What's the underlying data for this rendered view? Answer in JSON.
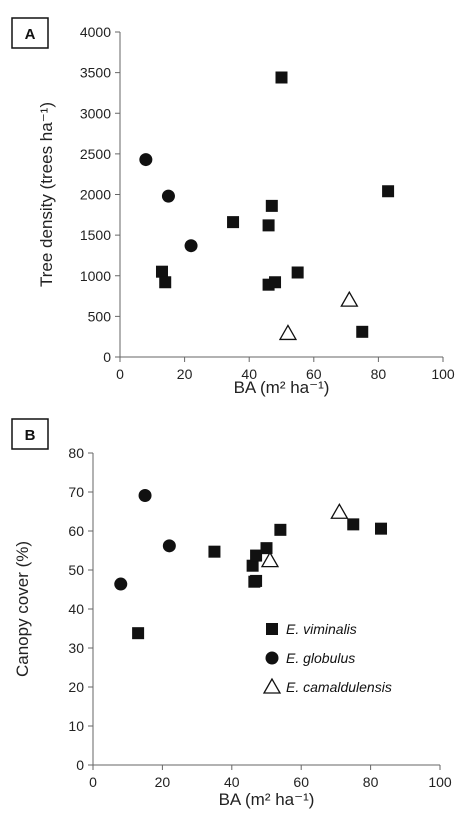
{
  "chart_data": [
    {
      "type": "scatter",
      "panel": "A",
      "title": "",
      "xlabel": "BA (m² ha⁻¹)",
      "ylabel": "Tree density (trees ha⁻¹)",
      "xlim": [
        0,
        100
      ],
      "ylim": [
        0,
        4000
      ],
      "xticks": [
        "0",
        "20",
        "40",
        "60",
        "80",
        "100"
      ],
      "yticks": [
        "0",
        "500",
        "1000",
        "1500",
        "2000",
        "2500",
        "3000",
        "3500",
        "4000"
      ],
      "grid": false,
      "series": [
        {
          "name": "E. viminalis",
          "marker": "square",
          "points": [
            [
              13,
              1050
            ],
            [
              14,
              920
            ],
            [
              35,
              1660
            ],
            [
              46,
              1620
            ],
            [
              47,
              1860
            ],
            [
              46,
              890
            ],
            [
              48,
              920
            ],
            [
              50,
              3440
            ],
            [
              55,
              1040
            ],
            [
              75,
              310
            ],
            [
              83,
              2040
            ]
          ]
        },
        {
          "name": "E. globulus",
          "marker": "circle",
          "points": [
            [
              8,
              2430
            ],
            [
              15,
              1980
            ],
            [
              22,
              1370
            ]
          ]
        },
        {
          "name": "E. camaldulensis",
          "marker": "triangle",
          "points": [
            [
              52,
              290
            ],
            [
              71,
              700
            ]
          ]
        }
      ]
    },
    {
      "type": "scatter",
      "panel": "B",
      "title": "",
      "xlabel": "BA (m² ha⁻¹)",
      "ylabel": "Canopy cover (%)",
      "xlim": [
        0,
        100
      ],
      "ylim": [
        0,
        80
      ],
      "xticks": [
        "0",
        "20",
        "40",
        "60",
        "80",
        "100"
      ],
      "yticks": [
        "0",
        "10",
        "20",
        "30",
        "40",
        "50",
        "60",
        "70",
        "80"
      ],
      "grid": false,
      "legend": {
        "placement": "bottom-right",
        "entries": [
          "E. viminalis",
          "E. globulus",
          "E. camaldulensis"
        ]
      },
      "series": [
        {
          "name": "E. viminalis",
          "marker": "square",
          "points": [
            [
              13,
              33.8
            ],
            [
              35,
              54.7
            ],
            [
              46,
              51.1
            ],
            [
              46.5,
              47
            ],
            [
              47,
              47.2
            ],
            [
              47,
              53.7
            ],
            [
              50,
              55.6
            ],
            [
              54,
              60.3
            ],
            [
              75,
              61.7
            ],
            [
              83,
              60.6
            ]
          ]
        },
        {
          "name": "E. globulus",
          "marker": "circle",
          "points": [
            [
              8,
              46.4
            ],
            [
              15,
              69.1
            ],
            [
              22,
              56.2
            ]
          ]
        },
        {
          "name": "E. camaldulensis",
          "marker": "triangle",
          "points": [
            [
              51,
              52.4
            ],
            [
              71,
              64.8
            ]
          ]
        }
      ]
    }
  ]
}
